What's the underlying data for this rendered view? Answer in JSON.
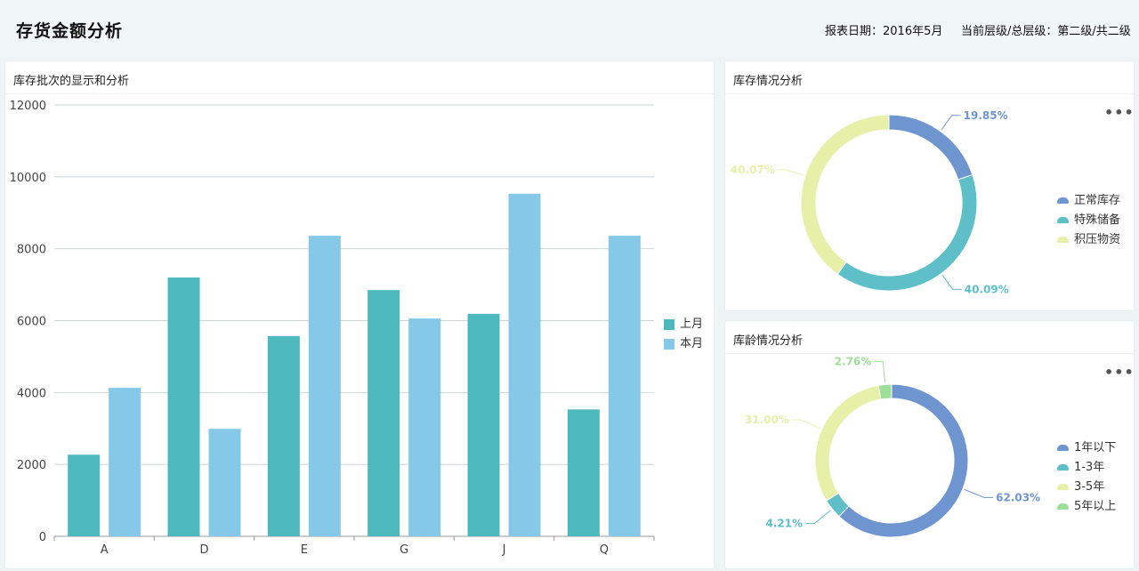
{
  "header": {
    "title": "存货金额分析",
    "report_date": "报表日期：2016年5月",
    "level_info": "当前层级/总层级：第二级/共二级"
  },
  "panels": {
    "bar": {
      "title": "库存批次的显示和分析"
    },
    "inventory": {
      "title": "库存情况分析",
      "more_label": "•••"
    },
    "age": {
      "title": "库龄情况分析",
      "more_label": "•••"
    }
  },
  "chart_data": [
    {
      "type": "bar",
      "categories": [
        "A",
        "D",
        "E",
        "G",
        "J",
        "Q"
      ],
      "series": [
        {
          "name": "上月",
          "color": "#4db9bf",
          "values": [
            2270,
            7200,
            5570,
            6850,
            6190,
            3530
          ]
        },
        {
          "name": "本月",
          "color": "#85c8e8",
          "values": [
            4130,
            2990,
            8360,
            6060,
            9530,
            8360
          ]
        }
      ],
      "ylim": [
        0,
        12000
      ],
      "yticks": [
        "0",
        "2000",
        "4000",
        "6000",
        "8000",
        "10000",
        "12000"
      ],
      "grid": true,
      "legend": "right"
    },
    {
      "type": "pie",
      "variant": "donut",
      "slices": [
        {
          "name": "正常库存",
          "value": 19.85,
          "label": "19.85%",
          "color": "#6f95d0"
        },
        {
          "name": "特殊储备",
          "value": 40.09,
          "label": "40.09%",
          "color": "#5ebfc9"
        },
        {
          "name": "积压物资",
          "value": 40.07,
          "label": "40.07%",
          "color": "#e7f0a8"
        }
      ],
      "legend": "right"
    },
    {
      "type": "pie",
      "variant": "donut",
      "slices": [
        {
          "name": "1年以下",
          "value": 62.03,
          "label": "62.03%",
          "color": "#6f95d0"
        },
        {
          "name": "1-3年",
          "value": 4.21,
          "label": "4.21%",
          "color": "#5ebfc9"
        },
        {
          "name": "3-5年",
          "value": 31.0,
          "label": "31.00%",
          "color": "#e7f0a8"
        },
        {
          "name": "5年以上",
          "value": 2.76,
          "label": "2.76%",
          "color": "#9ddf98"
        }
      ],
      "legend": "right"
    }
  ]
}
